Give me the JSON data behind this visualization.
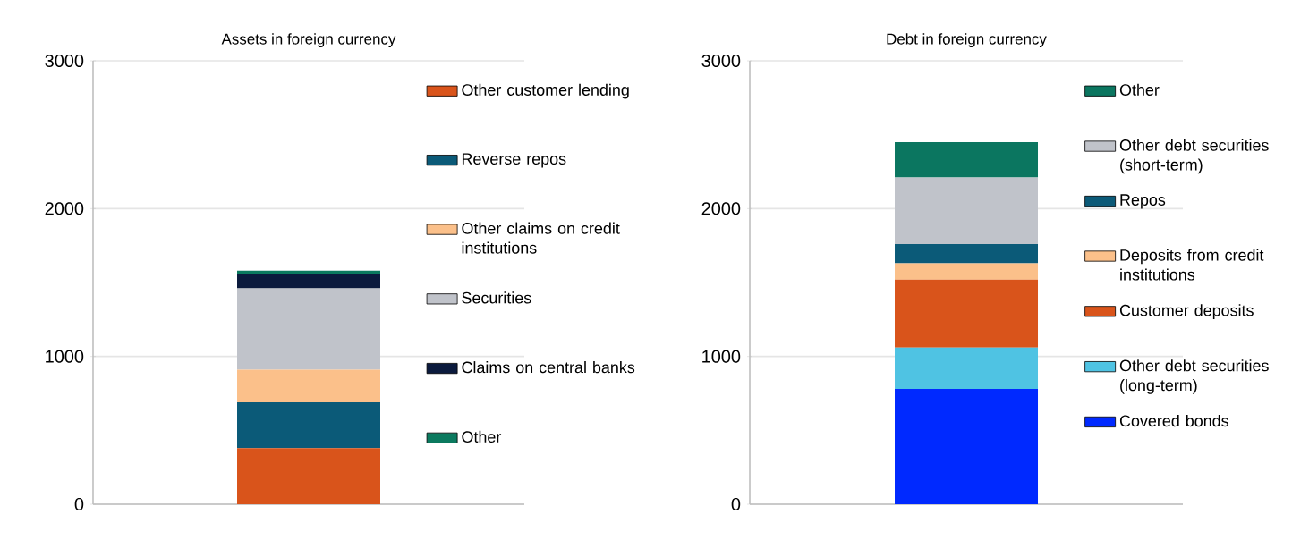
{
  "chart_data": [
    {
      "type": "bar",
      "stacked": true,
      "title": "Assets in foreign currency",
      "categories": [
        null
      ],
      "ylim": [
        0,
        3000
      ],
      "yticks": [
        0,
        1000,
        2000,
        3000
      ],
      "grid": "y",
      "legend": "right",
      "tick_labels": "y",
      "series": [
        {
          "name": "Other customer lending",
          "color": "#d9541b",
          "values": [
            380
          ]
        },
        {
          "name": "Reverse repos",
          "color": "#0b5a78",
          "values": [
            310
          ]
        },
        {
          "name": "Other claims on credit institutions",
          "color": "#fbc08a",
          "values": [
            220
          ]
        },
        {
          "name": "Securities",
          "color": "#c0c3ca",
          "values": [
            550
          ]
        },
        {
          "name": "Claims on central banks",
          "color": "#0b1a3d",
          "values": [
            100
          ]
        },
        {
          "name": "Other",
          "color": "#0b7a5f",
          "values": [
            20
          ]
        }
      ]
    },
    {
      "type": "bar",
      "stacked": true,
      "title": "Debt in foreign currency",
      "categories": [
        null
      ],
      "ylim": [
        0,
        3000
      ],
      "yticks": [
        0,
        1000,
        2000,
        3000
      ],
      "grid": "y",
      "legend": "right",
      "tick_labels": "y",
      "series": [
        {
          "name": "Covered bonds",
          "color": "#0029ff",
          "values": [
            780
          ]
        },
        {
          "name": "Other debt securities (long-term)",
          "color": "#4fc3e3",
          "values": [
            280
          ]
        },
        {
          "name": "Customer deposits",
          "color": "#d9541b",
          "values": [
            460
          ]
        },
        {
          "name": "Deposits from credit institutions",
          "color": "#fbc08a",
          "values": [
            110
          ]
        },
        {
          "name": "Repos",
          "color": "#0b5a78",
          "values": [
            130
          ]
        },
        {
          "name": "Other debt securities (short-term)",
          "color": "#c0c3ca",
          "values": [
            450
          ]
        },
        {
          "name": "Other",
          "color": "#0b7660",
          "values": [
            240
          ]
        }
      ]
    }
  ]
}
